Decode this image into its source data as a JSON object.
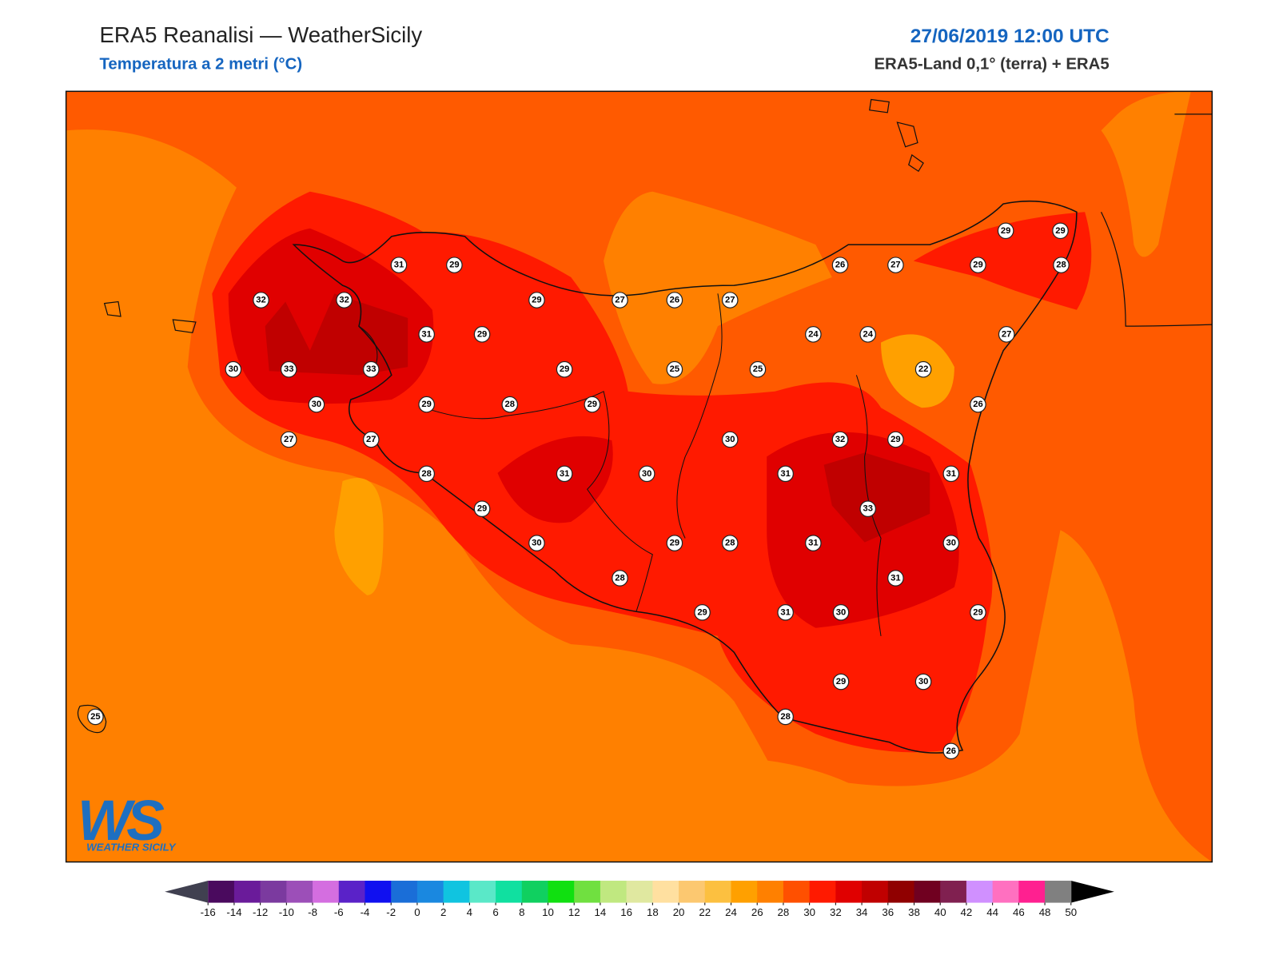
{
  "header": {
    "title": "ERA5 Reanalisi — WeatherSicily",
    "subtitle": "Temperatura a 2 metri (°C)",
    "date": "27/06/2019 12:00 UTC",
    "source": "ERA5-Land 0,1° (terra) + ERA5"
  },
  "stations": [
    29,
    29,
    31,
    29,
    26,
    27,
    29,
    28,
    32,
    32,
    29,
    27,
    26,
    27,
    31,
    29,
    24,
    24,
    27,
    30,
    33,
    33,
    29,
    25,
    25,
    22,
    30,
    29,
    28,
    29,
    26,
    27,
    27,
    30,
    32,
    29,
    28,
    31,
    30,
    31,
    31,
    29,
    33,
    30,
    29,
    28,
    31,
    30,
    28,
    31,
    29,
    31,
    30,
    29,
    29,
    30,
    25,
    28,
    26
  ],
  "colorbar": {
    "ticks": [
      -16,
      -14,
      -12,
      -10,
      -8,
      -6,
      -4,
      -2,
      0,
      2,
      4,
      6,
      8,
      10,
      12,
      14,
      16,
      18,
      20,
      22,
      24,
      26,
      28,
      30,
      32,
      34,
      36,
      38,
      40,
      42,
      44,
      46,
      48,
      50
    ],
    "colors": [
      "#4a0a5e",
      "#6a1b9a",
      "#7b3a9f",
      "#9c4fb8",
      "#d46ee0",
      "#5a22c8",
      "#1010f0",
      "#1a6ed8",
      "#1a88e0",
      "#10c4e0",
      "#5ae8c8",
      "#10e0a0",
      "#10d060",
      "#10e010",
      "#70e040",
      "#c0e880",
      "#e0e8a0",
      "#ffe0a0",
      "#fcc870",
      "#fcc040",
      "#ffa000",
      "#ff8000",
      "#ff5000",
      "#ff1a00",
      "#e00000",
      "#c00000",
      "#900000",
      "#700020",
      "#802050",
      "#d090ff",
      "#ff70c0",
      "#ff2090",
      "#808080"
    ],
    "under_color": "#404050",
    "over_color": "#000000"
  },
  "logo": {
    "mark": "WS",
    "text": "WEATHER SICILY"
  }
}
